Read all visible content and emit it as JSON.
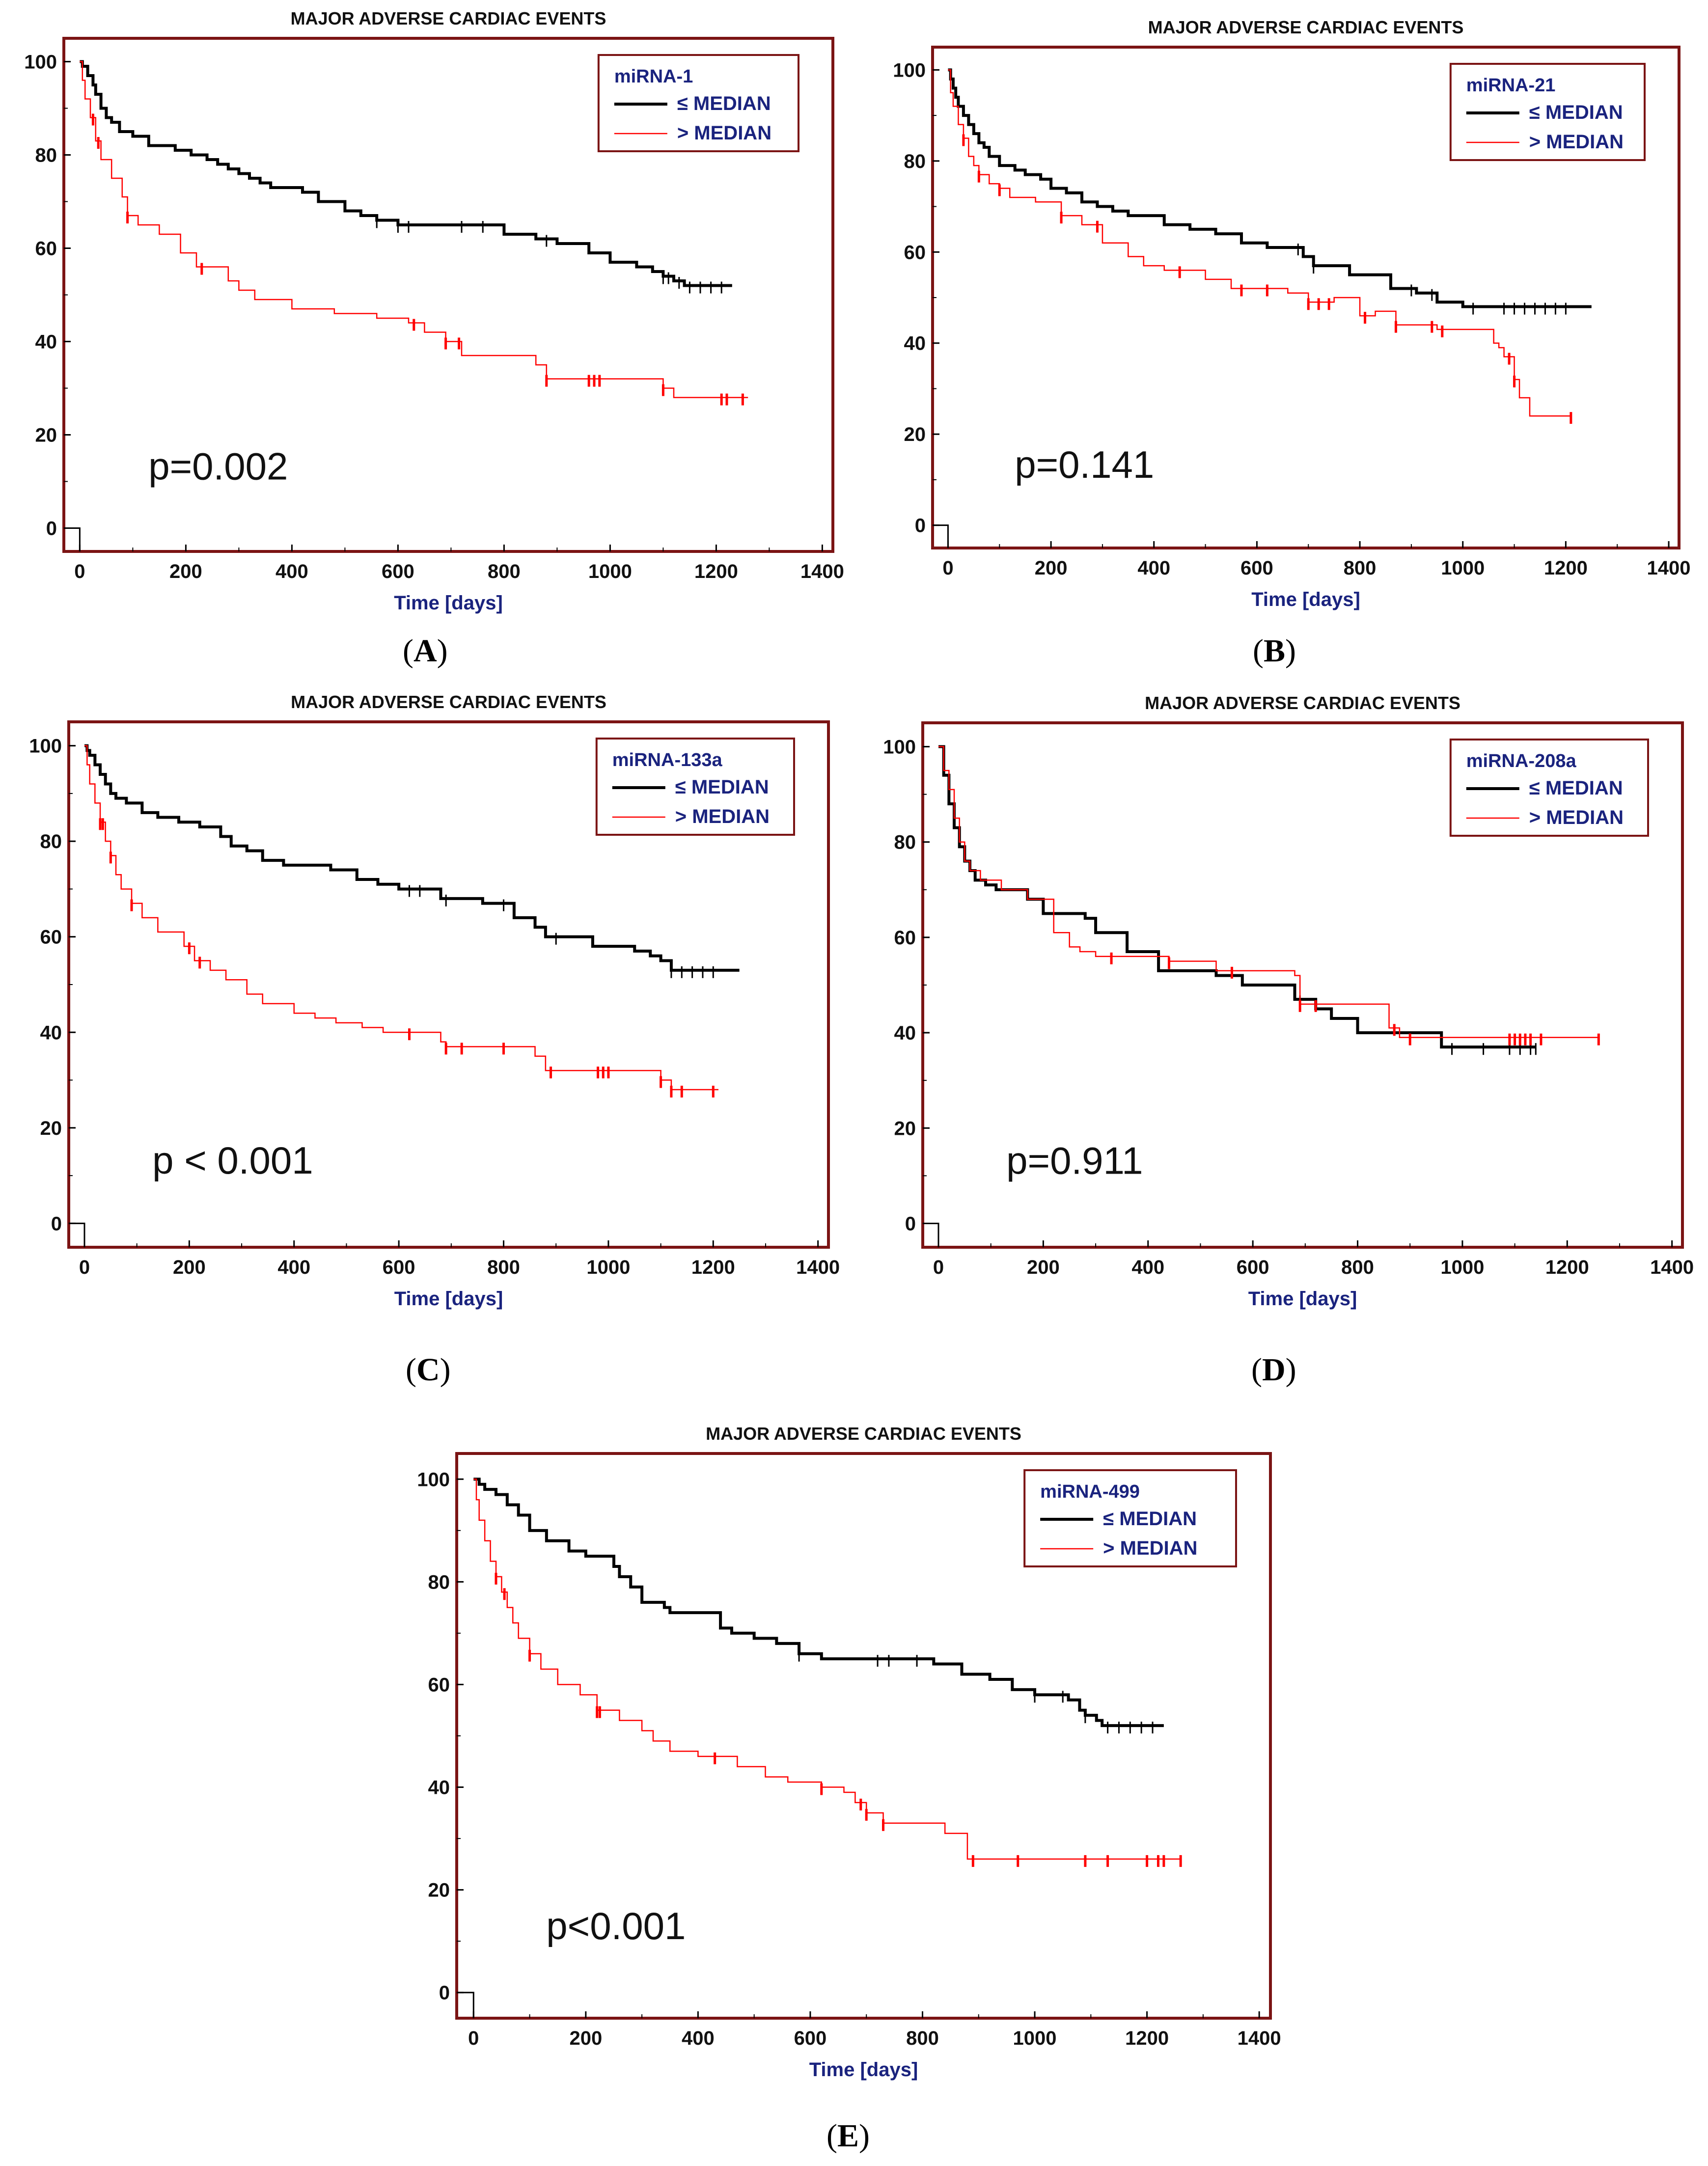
{
  "chart_data": [
    {
      "type": "line",
      "panel_label": "A",
      "title": "MAJOR ADVERSE CARDIAC EVENTS",
      "xlabel": "Time [days]",
      "ylabel": "",
      "xlim": [
        -30,
        1420
      ],
      "ylim": [
        -5,
        105
      ],
      "xticks": [
        0,
        200,
        400,
        600,
        800,
        1000,
        1200,
        1400
      ],
      "yticks": [
        0,
        20,
        40,
        60,
        80,
        100
      ],
      "annotation": "p=0.002",
      "legend": {
        "name": "miRNA-1",
        "entries": [
          "≤  MEDIAN",
          ">  MEDIAN"
        ],
        "location": "top-right"
      },
      "series": [
        {
          "name": "≤ MEDIAN",
          "color": "#000000",
          "x": [
            0,
            5,
            15,
            25,
            30,
            40,
            50,
            60,
            75,
            100,
            130,
            180,
            210,
            240,
            260,
            280,
            300,
            320,
            340,
            360,
            420,
            450,
            500,
            530,
            560,
            600,
            660,
            720,
            780,
            800,
            860,
            900,
            960,
            1000,
            1050,
            1080,
            1100,
            1120,
            1140,
            1230
          ],
          "y": [
            100,
            99,
            97,
            95,
            93,
            90,
            88,
            87,
            85,
            84,
            82,
            81,
            80,
            79,
            78,
            77,
            76,
            75,
            74,
            73,
            72,
            70,
            68,
            67,
            66,
            65,
            65,
            65,
            65,
            63,
            62,
            61,
            59,
            57,
            56,
            55,
            54,
            53,
            52,
            52
          ],
          "censored": [
            560,
            600,
            620,
            720,
            760,
            880,
            1100,
            1110,
            1130,
            1150,
            1170,
            1190,
            1210
          ]
        },
        {
          "name": "> MEDIAN",
          "color": "#ff0000",
          "x": [
            0,
            5,
            10,
            20,
            30,
            40,
            60,
            80,
            90,
            110,
            150,
            190,
            220,
            280,
            300,
            330,
            400,
            480,
            560,
            620,
            650,
            690,
            720,
            860,
            880,
            1100,
            1120,
            1260
          ],
          "y": [
            100,
            96,
            92,
            88,
            83,
            79,
            75,
            71,
            67,
            65,
            63,
            59,
            56,
            53,
            51,
            49,
            47,
            46,
            45,
            44,
            42,
            40,
            37,
            35,
            32,
            30,
            28,
            28
          ],
          "censored": [
            25,
            35,
            90,
            230,
            630,
            690,
            715,
            880,
            960,
            970,
            980,
            1100,
            1210,
            1220,
            1250
          ]
        }
      ]
    },
    {
      "type": "line",
      "panel_label": "B",
      "title": "MAJOR ADVERSE CARDIAC EVENTS",
      "xlabel": "Time [days]",
      "ylabel": "",
      "xlim": [
        -30,
        1420
      ],
      "ylim": [
        -5,
        105
      ],
      "xticks": [
        0,
        200,
        400,
        600,
        800,
        1000,
        1200,
        1400
      ],
      "yticks": [
        0,
        20,
        40,
        60,
        80,
        100
      ],
      "annotation": "p=0.141",
      "legend": {
        "name": "miRNA-21",
        "entries": [
          "≤  MEDIAN",
          ">  MEDIAN"
        ],
        "location": "top-right"
      },
      "series": [
        {
          "name": "≤ MEDIAN",
          "color": "#000000",
          "x": [
            0,
            5,
            10,
            15,
            20,
            30,
            40,
            50,
            60,
            70,
            80,
            100,
            130,
            150,
            180,
            200,
            230,
            260,
            290,
            320,
            350,
            420,
            470,
            520,
            570,
            620,
            690,
            710,
            780,
            860,
            910,
            950,
            1000,
            1250
          ],
          "y": [
            100,
            98,
            96,
            94,
            92,
            90,
            88,
            86,
            84,
            83,
            81,
            79,
            78,
            77,
            76,
            74,
            73,
            71,
            70,
            69,
            68,
            66,
            65,
            64,
            62,
            61,
            59,
            57,
            55,
            52,
            51,
            49,
            48,
            48
          ],
          "censored": [
            680,
            710,
            900,
            940,
            1020,
            1080,
            1100,
            1120,
            1140,
            1160,
            1180,
            1200
          ]
        },
        {
          "name": "> MEDIAN",
          "color": "#ff0000",
          "x": [
            0,
            5,
            10,
            20,
            30,
            40,
            50,
            60,
            80,
            100,
            120,
            170,
            220,
            260,
            300,
            350,
            380,
            420,
            500,
            550,
            660,
            700,
            750,
            800,
            830,
            870,
            950,
            1060,
            1070,
            1080,
            1100,
            1110,
            1130,
            1210
          ],
          "y": [
            100,
            95,
            92,
            88,
            85,
            81,
            79,
            77,
            75,
            74,
            72,
            71,
            68,
            66,
            62,
            59,
            57,
            56,
            54,
            52,
            51,
            49,
            50,
            46,
            47,
            44,
            43,
            40,
            39,
            37,
            32,
            28,
            24,
            24
          ],
          "censored": [
            30,
            60,
            100,
            220,
            290,
            450,
            570,
            620,
            700,
            720,
            740,
            810,
            870,
            940,
            960,
            1090,
            1100,
            1210
          ]
        }
      ]
    },
    {
      "type": "line",
      "panel_label": "C",
      "title": "MAJOR ADVERSE CARDIAC EVENTS",
      "xlabel": "Time [days]",
      "ylabel": "",
      "xlim": [
        -30,
        1420
      ],
      "ylim": [
        -5,
        105
      ],
      "xticks": [
        0,
        200,
        400,
        600,
        800,
        1000,
        1200,
        1400
      ],
      "yticks": [
        0,
        20,
        40,
        60,
        80,
        100
      ],
      "annotation": "p < 0.001",
      "legend": {
        "name": "miRNA-133a",
        "entries": [
          "≤  MEDIAN",
          ">  MEDIAN"
        ],
        "location": "top-right"
      },
      "series": [
        {
          "name": "≤ MEDIAN",
          "color": "#000000",
          "x": [
            0,
            5,
            10,
            20,
            30,
            40,
            50,
            60,
            80,
            110,
            140,
            180,
            220,
            260,
            280,
            310,
            340,
            380,
            420,
            470,
            520,
            560,
            600,
            680,
            760,
            820,
            860,
            880,
            970,
            1050,
            1080,
            1100,
            1120,
            1250
          ],
          "y": [
            100,
            99,
            98,
            96,
            94,
            92,
            90,
            89,
            88,
            86,
            85,
            84,
            83,
            81,
            79,
            78,
            76,
            75,
            75,
            74,
            72,
            71,
            70,
            68,
            67,
            64,
            62,
            60,
            58,
            57,
            56,
            55,
            53,
            53
          ],
          "censored": [
            620,
            640,
            690,
            800,
            900,
            1120,
            1140,
            1160,
            1180,
            1200
          ]
        },
        {
          "name": "> MEDIAN",
          "color": "#ff0000",
          "x": [
            0,
            5,
            10,
            20,
            30,
            40,
            50,
            60,
            70,
            90,
            110,
            140,
            190,
            210,
            240,
            270,
            310,
            340,
            400,
            440,
            480,
            510,
            530,
            570,
            650,
            680,
            690,
            700,
            860,
            880,
            1100,
            1120,
            1210
          ],
          "y": [
            100,
            96,
            92,
            88,
            84,
            80,
            77,
            73,
            70,
            67,
            64,
            61,
            58,
            55,
            53,
            51,
            48,
            46,
            44,
            43,
            42,
            42,
            41,
            40,
            40,
            38,
            37,
            37,
            35,
            32,
            30,
            28,
            28
          ],
          "censored": [
            30,
            35,
            50,
            90,
            200,
            220,
            620,
            690,
            720,
            800,
            890,
            980,
            990,
            1000,
            1100,
            1120,
            1140,
            1200
          ]
        }
      ]
    },
    {
      "type": "line",
      "panel_label": "D",
      "title": "MAJOR ADVERSE CARDIAC EVENTS",
      "xlabel": "Time [days]",
      "ylabel": "",
      "xlim": [
        -30,
        1420
      ],
      "ylim": [
        -5,
        105
      ],
      "xticks": [
        0,
        200,
        400,
        600,
        800,
        1000,
        1200,
        1400
      ],
      "yticks": [
        0,
        20,
        40,
        60,
        80,
        100
      ],
      "annotation": "p=0.911",
      "legend": {
        "name": "miRNA-208a",
        "entries": [
          "≤  MEDIAN",
          ">  MEDIAN"
        ],
        "location": "top-right"
      },
      "series": [
        {
          "name": "≤ MEDIAN",
          "color": "#000000",
          "x": [
            0,
            10,
            20,
            30,
            40,
            50,
            60,
            70,
            90,
            110,
            170,
            200,
            280,
            300,
            360,
            420,
            530,
            580,
            680,
            720,
            750,
            800,
            880,
            960,
            1140
          ],
          "y": [
            100,
            94,
            88,
            83,
            79,
            76,
            74,
            72,
            71,
            70,
            68,
            65,
            64,
            61,
            57,
            53,
            52,
            50,
            47,
            45,
            43,
            40,
            40,
            37,
            37
          ],
          "censored": [
            690,
            980,
            1040,
            1090,
            1110,
            1130,
            1140
          ]
        },
        {
          "name": "> MEDIAN",
          "color": "#ff0000",
          "x": [
            0,
            10,
            20,
            30,
            40,
            50,
            60,
            80,
            120,
            170,
            220,
            250,
            270,
            300,
            440,
            530,
            560,
            680,
            690,
            860,
            880,
            960,
            1260
          ],
          "y": [
            100,
            95,
            91,
            85,
            80,
            76,
            74,
            72,
            70,
            68,
            61,
            58,
            57,
            56,
            55,
            53,
            53,
            52,
            46,
            41,
            39,
            39,
            39
          ],
          "censored": [
            330,
            440,
            560,
            690,
            720,
            870,
            900,
            1090,
            1100,
            1110,
            1120,
            1130,
            1150,
            1260
          ]
        }
      ]
    },
    {
      "type": "line",
      "panel_label": "E",
      "title": "MAJOR ADVERSE CARDIAC EVENTS",
      "xlabel": "Time [days]",
      "ylabel": "",
      "xlim": [
        -30,
        1420
      ],
      "ylim": [
        -5,
        105
      ],
      "xticks": [
        0,
        200,
        400,
        600,
        800,
        1000,
        1200,
        1400
      ],
      "yticks": [
        0,
        20,
        40,
        60,
        80,
        100
      ],
      "annotation": "p<0.001",
      "legend": {
        "name": "miRNA-499",
        "entries": [
          "≤  MEDIAN",
          ">  MEDIAN"
        ],
        "location": "top-right"
      },
      "series": [
        {
          "name": "≤ MEDIAN",
          "color": "#000000",
          "x": [
            0,
            10,
            20,
            40,
            60,
            80,
            100,
            130,
            170,
            200,
            250,
            260,
            280,
            300,
            340,
            350,
            440,
            460,
            500,
            540,
            580,
            620,
            680,
            820,
            870,
            920,
            960,
            1000,
            1060,
            1080,
            1090,
            1110,
            1120,
            1230
          ],
          "y": [
            100,
            99,
            98,
            97,
            95,
            93,
            90,
            88,
            86,
            85,
            83,
            81,
            79,
            76,
            75,
            74,
            71,
            70,
            69,
            68,
            66,
            65,
            65,
            64,
            62,
            61,
            59,
            58,
            57,
            55,
            54,
            53,
            52,
            52
          ],
          "censored": [
            580,
            720,
            740,
            790,
            1000,
            1050,
            1090,
            1130,
            1150,
            1170,
            1190,
            1210
          ]
        },
        {
          "name": "> MEDIAN",
          "color": "#ff0000",
          "x": [
            0,
            5,
            10,
            20,
            30,
            40,
            50,
            60,
            70,
            80,
            100,
            120,
            150,
            190,
            220,
            260,
            300,
            320,
            350,
            400,
            470,
            520,
            560,
            620,
            660,
            680,
            700,
            730,
            840,
            880,
            1260
          ],
          "y": [
            100,
            96,
            92,
            88,
            84,
            81,
            78,
            75,
            72,
            69,
            66,
            63,
            60,
            58,
            55,
            53,
            51,
            49,
            47,
            46,
            44,
            42,
            41,
            40,
            39,
            37,
            35,
            33,
            31,
            26,
            26
          ],
          "censored": [
            40,
            55,
            100,
            220,
            225,
            430,
            620,
            690,
            700,
            730,
            890,
            970,
            1090,
            1130,
            1200,
            1220,
            1230,
            1260
          ]
        }
      ]
    }
  ]
}
